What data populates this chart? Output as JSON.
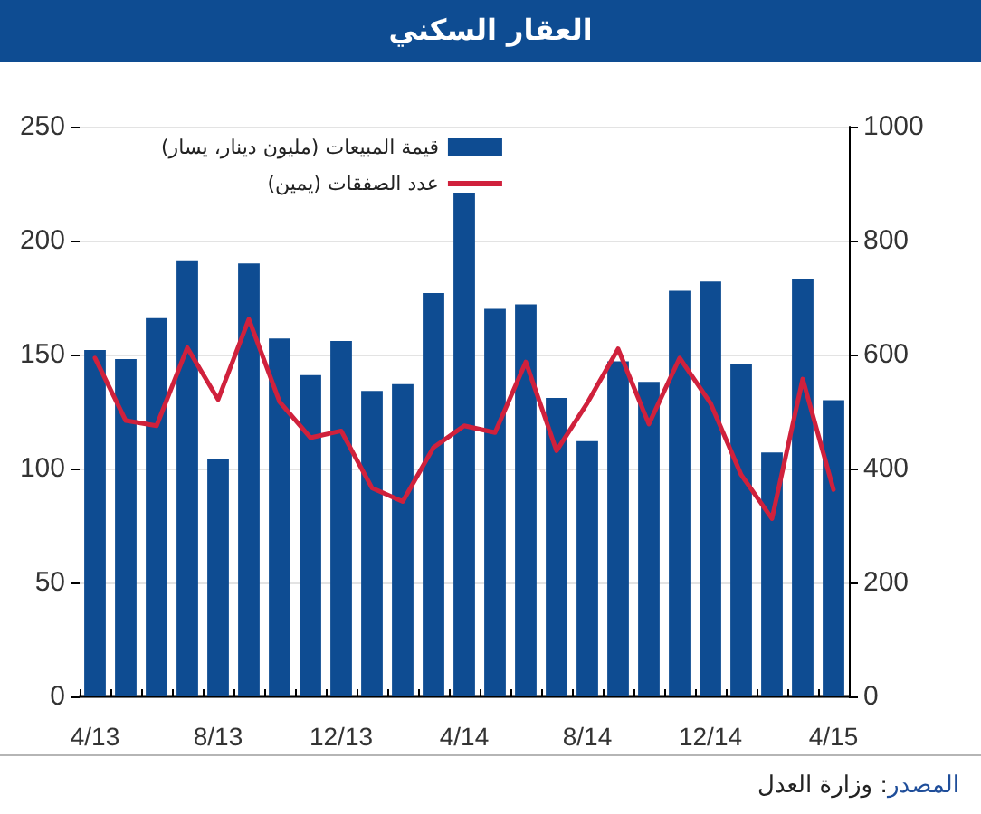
{
  "chart_data": {
    "type": "bar",
    "title": "العقار السكني",
    "categories": [
      "4/13",
      null,
      null,
      null,
      "8/13",
      null,
      null,
      null,
      "12/13",
      null,
      null,
      null,
      "4/14",
      null,
      null,
      null,
      "8/14",
      null,
      null,
      null,
      "12/14",
      null,
      null,
      null,
      "4/15"
    ],
    "series": [
      {
        "name": "قيمة المبيعات (مليون دينار، يسار)",
        "type": "bar",
        "color": "#0e4c92",
        "values": [
          152,
          148,
          166,
          191,
          104,
          190,
          157,
          141,
          156,
          134,
          137,
          177,
          221,
          170,
          172,
          131,
          112,
          147,
          138,
          178,
          182,
          146,
          107,
          183,
          130
        ]
      },
      {
        "name": "عدد الصفقات (يمين)",
        "type": "line",
        "axis": "y2",
        "color": "#d0213c",
        "values": [
          594,
          484,
          475,
          612,
          521,
          662,
          517,
          454,
          466,
          366,
          342,
          437,
          475,
          463,
          587,
          431,
          515,
          610,
          478,
          594,
          515,
          389,
          312,
          557,
          363
        ]
      }
    ],
    "ylim": [
      0,
      250
    ],
    "yticks": [
      0,
      50,
      100,
      150,
      200,
      250
    ],
    "y2lim": [
      0,
      1000
    ],
    "y2ticks": [
      0,
      200,
      400,
      600,
      800,
      1000
    ],
    "grid": "y",
    "legend": "top left",
    "marker": "none",
    "line_style": "solid",
    "annotations": [
      "المصدر: وزارة العدل"
    ]
  }
}
